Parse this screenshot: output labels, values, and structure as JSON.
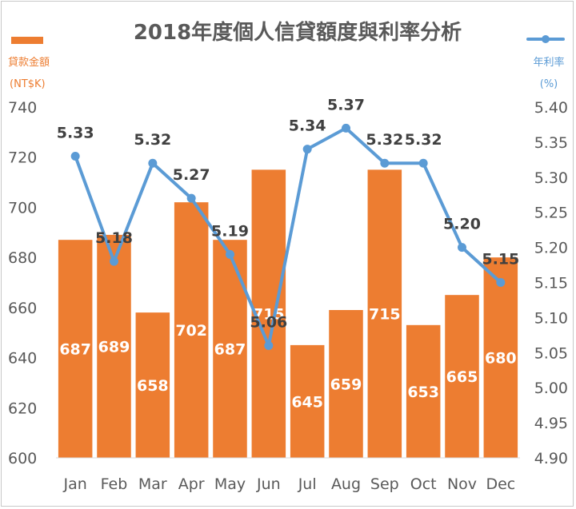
{
  "chart_data": {
    "type": "bar+line",
    "title": "2018年度個人信貸額度與利率分析",
    "categories": [
      "Jan",
      "Feb",
      "Mar",
      "Apr",
      "May",
      "Jun",
      "Jul",
      "Aug",
      "Sep",
      "Oct",
      "Nov",
      "Dec"
    ],
    "series": [
      {
        "name": "貸款金額",
        "type": "bar",
        "axis": "left",
        "color": "#ed7d31",
        "values": [
          687,
          689,
          658,
          702,
          687,
          715,
          645,
          659,
          715,
          653,
          665,
          680
        ]
      },
      {
        "name": "年利率",
        "type": "line",
        "axis": "right",
        "color": "#5b9bd5",
        "values": [
          5.33,
          5.18,
          5.32,
          5.27,
          5.19,
          5.06,
          5.34,
          5.37,
          5.32,
          5.32,
          5.2,
          5.15
        ],
        "labels": [
          "5.33",
          "5.18",
          "5.32",
          "5.27",
          "5.19",
          "5.06",
          "5.34",
          "5.37",
          "5.32",
          "5.32",
          "5.20",
          "5.15"
        ]
      }
    ],
    "left_axis": {
      "label_line1": "貸款金額",
      "label_line2": "(NT$K)",
      "ylim": [
        600,
        740
      ],
      "ticks": [
        "600",
        "620",
        "640",
        "660",
        "680",
        "700",
        "720",
        "740"
      ]
    },
    "right_axis": {
      "label_line1": "年利率",
      "label_line2": "(%)",
      "ylim": [
        4.9,
        5.4
      ],
      "ticks": [
        "4.90",
        "4.95",
        "5.00",
        "5.05",
        "5.10",
        "5.15",
        "5.20",
        "5.25",
        "5.30",
        "5.35",
        "5.40"
      ]
    },
    "grid": false,
    "legend": "top"
  }
}
